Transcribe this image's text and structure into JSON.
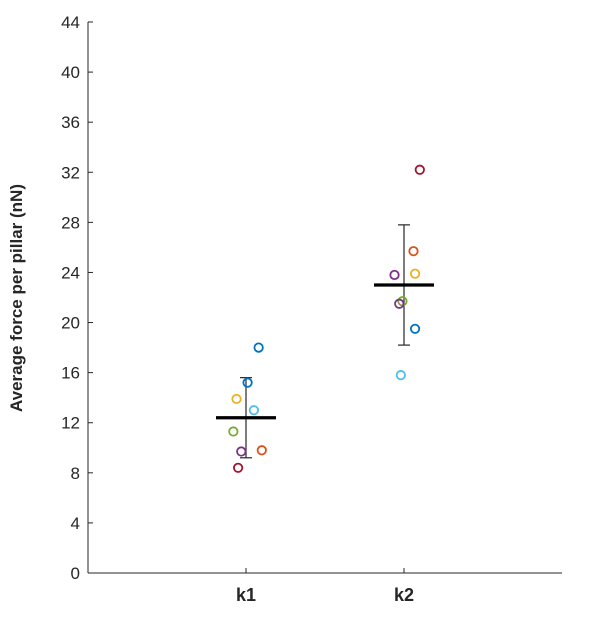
{
  "chart_data": {
    "type": "scatter",
    "title": "",
    "xlabel": "",
    "ylabel": "Average force per pillar (nN)",
    "ylim": [
      0,
      44
    ],
    "yticks": [
      0,
      4,
      8,
      12,
      16,
      20,
      24,
      28,
      32,
      36,
      40,
      44
    ],
    "categories": [
      "k1",
      "k2"
    ],
    "grid": false,
    "legend": "none",
    "groups": [
      {
        "category": "k1",
        "mean": 12.4,
        "error_low": 9.2,
        "error_high": 15.6,
        "points": [
          {
            "offset": 0.08,
            "y": 18.0,
            "color": "#0072BD"
          },
          {
            "offset": 0.01,
            "y": 15.2,
            "color": "#0072BD"
          },
          {
            "offset": -0.06,
            "y": 13.9,
            "color": "#EDB120"
          },
          {
            "offset": 0.05,
            "y": 13.0,
            "color": "#4DBEEE"
          },
          {
            "offset": -0.08,
            "y": 11.3,
            "color": "#77AC30"
          },
          {
            "offset": -0.03,
            "y": 9.7,
            "color": "#7E2F8E"
          },
          {
            "offset": 0.1,
            "y": 9.8,
            "color": "#D95319"
          },
          {
            "offset": -0.05,
            "y": 8.4,
            "color": "#A2142F"
          }
        ]
      },
      {
        "category": "k2",
        "mean": 23.0,
        "error_low": 18.2,
        "error_high": 27.8,
        "points": [
          {
            "offset": 0.1,
            "y": 32.2,
            "color": "#A2142F"
          },
          {
            "offset": 0.06,
            "y": 25.7,
            "color": "#D95319"
          },
          {
            "offset": 0.07,
            "y": 23.9,
            "color": "#EDB120"
          },
          {
            "offset": -0.06,
            "y": 23.8,
            "color": "#7E2F8E"
          },
          {
            "offset": -0.01,
            "y": 21.7,
            "color": "#77AC30"
          },
          {
            "offset": -0.03,
            "y": 21.5,
            "color": "#7E2F8E"
          },
          {
            "offset": 0.07,
            "y": 19.5,
            "color": "#0072BD"
          },
          {
            "offset": -0.02,
            "y": 15.8,
            "color": "#4DBEEE"
          }
        ]
      }
    ],
    "colors": {
      "axis": "#262626",
      "mean_line": "#000000",
      "error_bar": "#262626"
    }
  }
}
